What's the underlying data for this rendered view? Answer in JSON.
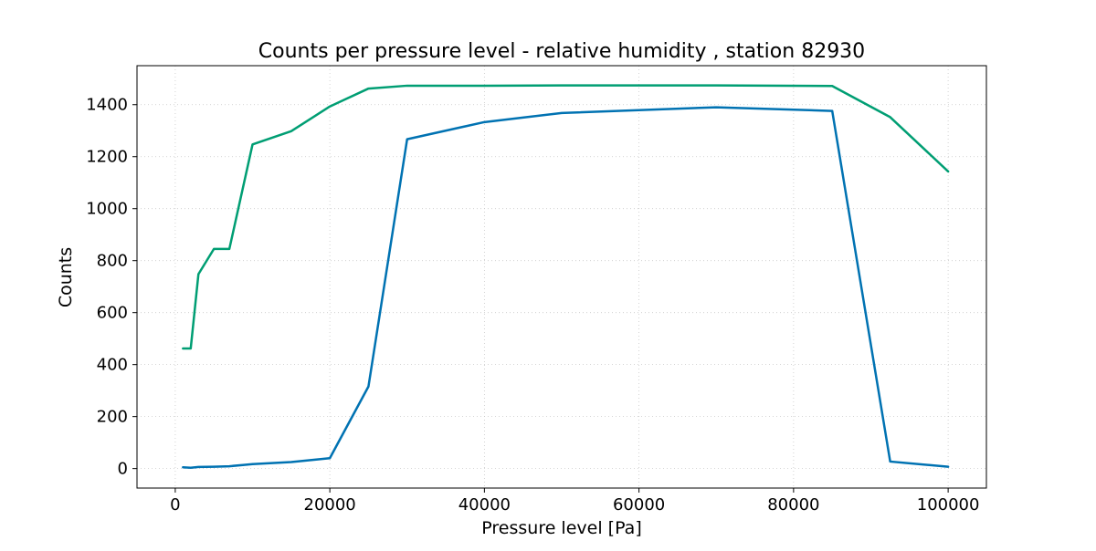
{
  "chart_data": {
    "type": "line",
    "title": "Counts per pressure level - relative humidity , station 82930",
    "xlabel": "Pressure level [Pa]",
    "ylabel": "Counts",
    "xlim": [
      -4950,
      104950
    ],
    "ylim": [
      -75,
      1550
    ],
    "xticks": [
      0,
      20000,
      40000,
      60000,
      80000,
      100000
    ],
    "xtick_labels": [
      "0",
      "20000",
      "40000",
      "60000",
      "80000",
      "100000"
    ],
    "yticks": [
      0,
      200,
      400,
      600,
      800,
      1000,
      1200,
      1400
    ],
    "ytick_labels": [
      "0",
      "200",
      "400",
      "600",
      "800",
      "1000",
      "1200",
      "1400"
    ],
    "grid": true,
    "legend": false,
    "series": [
      {
        "color": "#009E73",
        "x": [
          1000,
          2000,
          3000,
          5000,
          7000,
          10000,
          15000,
          20000,
          25000,
          30000,
          40000,
          50000,
          70000,
          85000,
          92500,
          100000
        ],
        "y": [
          462,
          462,
          748,
          845,
          845,
          1247,
          1298,
          1393,
          1462,
          1473,
          1473,
          1474,
          1474,
          1472,
          1352,
          1143
        ]
      },
      {
        "color": "#0072B2",
        "x": [
          1000,
          2000,
          3000,
          5000,
          7000,
          10000,
          15000,
          20000,
          25000,
          30000,
          40000,
          50000,
          70000,
          85000,
          92500,
          100000
        ],
        "y": [
          5,
          3,
          6,
          7,
          9,
          17,
          25,
          40,
          316,
          1267,
          1333,
          1368,
          1390,
          1376,
          27,
          7
        ]
      }
    ]
  }
}
